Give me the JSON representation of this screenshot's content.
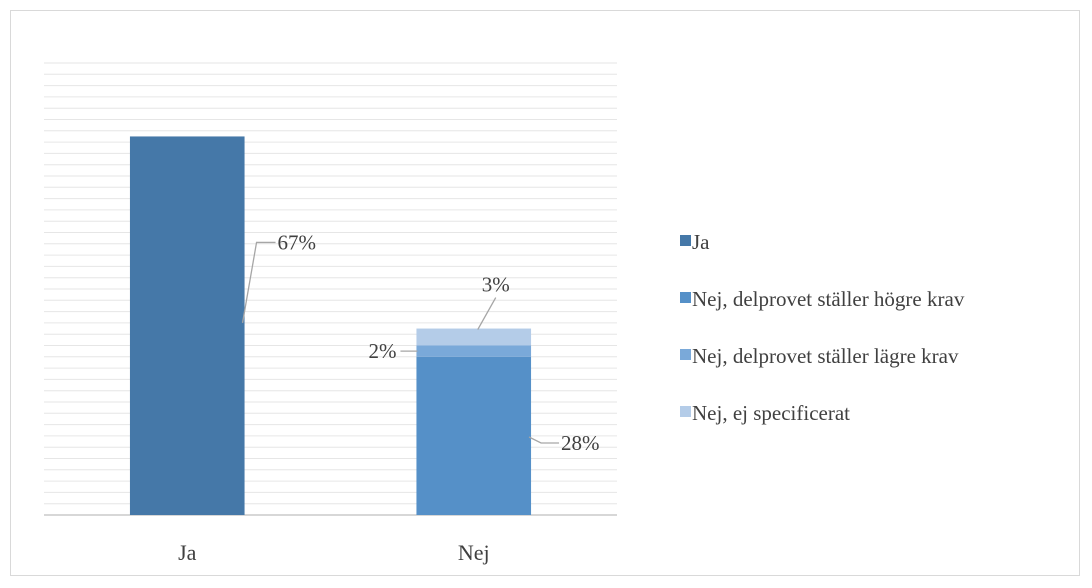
{
  "chart_data": {
    "type": "bar",
    "stacked": true,
    "title": "",
    "xlabel": "",
    "ylabel": "",
    "ylim": [
      0,
      80
    ],
    "grid": true,
    "legend_position": "right",
    "categories": [
      "Ja",
      "Nej"
    ],
    "series": [
      {
        "name": "Ja",
        "color": "#4578A8",
        "values": [
          67,
          0
        ],
        "labels": [
          "67%",
          ""
        ]
      },
      {
        "name": "Nej, delprovet ställer högre krav",
        "color": "#5590C8",
        "values": [
          0,
          28
        ],
        "labels": [
          "",
          "28%"
        ]
      },
      {
        "name": "Nej, delprovet ställer lägre krav",
        "color": "#7AA9D9",
        "values": [
          0,
          2
        ],
        "labels": [
          "",
          "2%"
        ]
      },
      {
        "name": "Nej, ej specificerat",
        "color": "#B4CCE8",
        "values": [
          0,
          3
        ],
        "labels": [
          "",
          "3%"
        ]
      }
    ]
  }
}
